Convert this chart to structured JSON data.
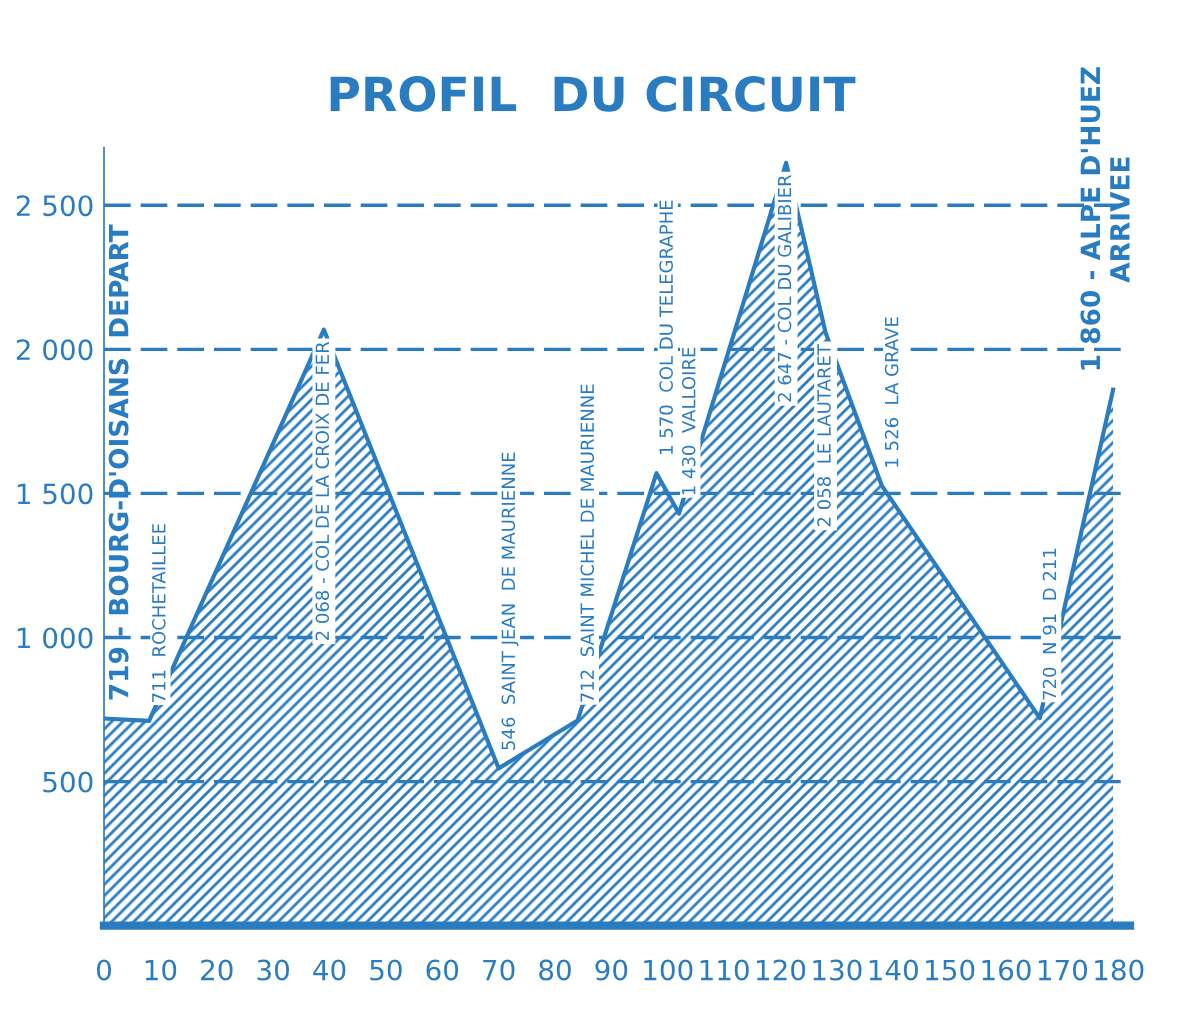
{
  "chart_data": {
    "type": "area",
    "title": "PROFIL  DU CIRCUIT",
    "x": [
      0,
      8,
      39,
      70,
      84,
      98,
      102,
      121,
      128,
      138,
      166,
      179
    ],
    "series": [
      {
        "color": "#2a7cc0",
        "values": [
          719,
          711,
          2068,
          546,
          712,
          1570,
          1430,
          2647,
          2058,
          1526,
          720,
          1860
        ]
      }
    ],
    "xlim": [
      0,
      182
    ],
    "ylim": [
      0,
      2700
    ],
    "xticks": [
      0,
      10,
      20,
      30,
      40,
      50,
      60,
      70,
      80,
      90,
      100,
      110,
      120,
      130,
      140,
      150,
      160,
      170,
      180
    ],
    "yticks": [
      500,
      {
        "value": 1000,
        "label": "1 000"
      },
      {
        "value": 1500,
        "label": "1 500"
      },
      {
        "value": 2000,
        "label": "2 000"
      },
      {
        "value": 2500,
        "label": "2 500"
      }
    ],
    "grid": "y",
    "line_style": "dashed",
    "annotations": [
      {
        "text": "719 - BOURG-D'OISANS  DEPART",
        "x": 0,
        "y": 719
      },
      {
        "text": "711  ROCHETAILLEE",
        "x": 8,
        "y": 711
      },
      {
        "text": "2 068 - COL DE LA CROIX DE FER",
        "x": 39,
        "y": 2068
      },
      {
        "text": "546  SAINT JEAN  DE MAURIENNE",
        "x": 70,
        "y": 546
      },
      {
        "text": "712  SAINT MICHEL DE MAURIENNE",
        "x": 84,
        "y": 712
      },
      {
        "text": "1 570  COL DU TELEGRAPHE",
        "x": 98,
        "y": 1570
      },
      {
        "text": "1 430  VALLOIRE",
        "x": 102,
        "y": 1430
      },
      {
        "text": "2 647 - COL DU GALIBIER",
        "x": 121,
        "y": 2647
      },
      {
        "text": "2 058  LE LAUTARET",
        "x": 128,
        "y": 2058
      },
      {
        "text": "1 526  LA GRAVE",
        "x": 138,
        "y": 1526
      },
      {
        "text": "720  N 91  D 211",
        "x": 166,
        "y": 720
      },
      {
        "text": "1 860 - ALPE D'HUEZ\nARRIVEE",
        "x": 179,
        "y": 1860
      }
    ]
  }
}
